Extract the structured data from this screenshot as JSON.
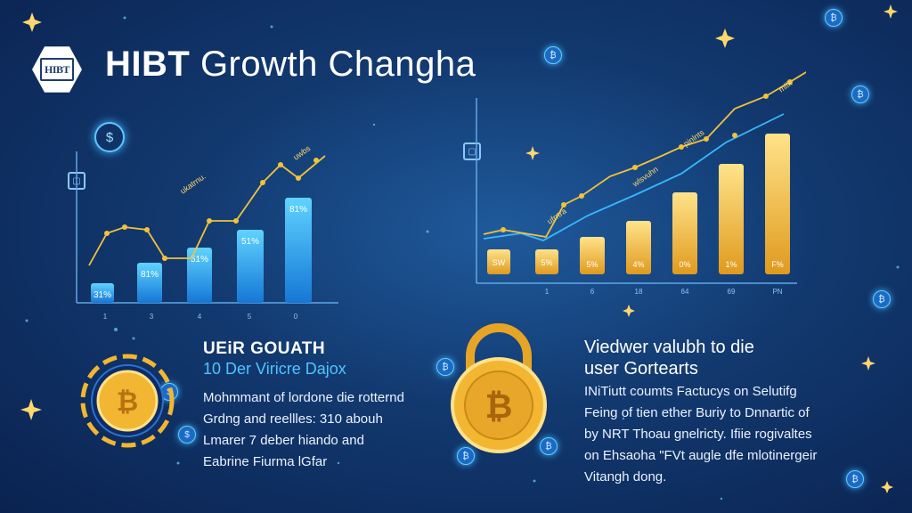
{
  "header": {
    "logo_text": "HIBT",
    "title_bold": "HIBT",
    "title_rest": " Growth Changha"
  },
  "left_chart": {
    "bar_labels": [
      "31%",
      "81%",
      "51%",
      "51%",
      "81%"
    ],
    "x_ticks": [
      "1",
      "3",
      "4",
      "5",
      "0"
    ],
    "annotation_labels": [
      "ukatrnu.",
      "uwbs"
    ]
  },
  "right_chart": {
    "bar_labels": [
      "SW",
      "5%",
      "5%",
      "4%",
      "0%",
      "1%",
      "F%"
    ],
    "x_ticks": [
      "",
      "1",
      "6",
      "18",
      "64",
      "69",
      "PN"
    ],
    "annotation_labels": [
      "ufrrtra",
      "wlsvuhn",
      "pinlnts",
      "mllk"
    ]
  },
  "left_panel": {
    "heading": "UEiR GOUATH",
    "subheading": "10 Der Viricre Dajox",
    "lines": [
      "Mohmmant of lordone die rotternd",
      "Grdng and reellles: 310 abouh",
      "Lmarer 7 deber hiando and",
      "Eabrine Fiurma lGfar"
    ]
  },
  "right_panel": {
    "heading_line1": "Viedwer valubh to die",
    "heading_line2": "user Gortearts",
    "lines": [
      "INiTiutt coumts Factucys on Selutifg",
      "Feing of tien ether Buriy to Dnnartic of",
      "by NRT Thoau gnelricty. Ifiie rogivaltes",
      "on Ehsaoha \"FVt augle dfe mlotinergeir",
      "Vitangh dong."
    ]
  },
  "icons": {
    "coin_symbol": "₿",
    "header_left_icon": "currency-icon",
    "corner_tag": "sb"
  },
  "colors": {
    "accent_blue": "#4ec4ff",
    "gold": "#f2b632",
    "background": "#12396f"
  }
}
